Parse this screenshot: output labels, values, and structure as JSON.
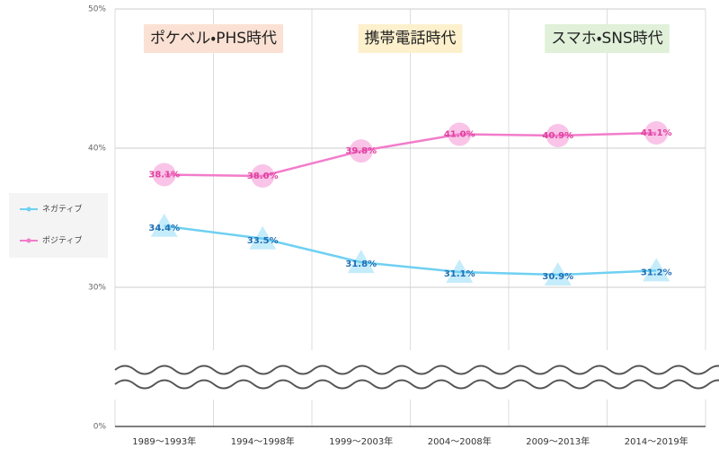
{
  "chart_data": {
    "type": "line",
    "categories": [
      "1989〜1993年",
      "1994〜1998年",
      "1999〜2003年",
      "2004〜2008年",
      "2009〜2013年",
      "2014〜2019年"
    ],
    "series": [
      {
        "name": "ネガティブ",
        "color": "#6fd0f2",
        "marker": "triangle",
        "label_color": "#1f6fb5",
        "values": [
          34.4,
          33.5,
          31.8,
          31.1,
          30.9,
          31.2
        ],
        "value_labels": [
          "34.4%",
          "33.5%",
          "31.8%",
          "31.1%",
          "30.9%",
          "31.2%"
        ]
      },
      {
        "name": "ポジティブ",
        "color": "#f27ccb",
        "marker": "circle",
        "label_color": "#e0409e",
        "values": [
          38.1,
          38.0,
          39.8,
          41.0,
          40.9,
          41.1
        ],
        "value_labels": [
          "38.1%",
          "38.0%",
          "39.8%",
          "41.0%",
          "40.9%",
          "41.1%"
        ]
      }
    ],
    "ylim": [
      0,
      50
    ],
    "yticks": [
      {
        "value": 0,
        "label": "0%"
      },
      {
        "value": 30,
        "label": "30%"
      },
      {
        "value": 40,
        "label": "40%"
      },
      {
        "value": 50,
        "label": "50%"
      }
    ],
    "y_axis_break": true,
    "grid": true,
    "legend": "left",
    "annotations": [
      {
        "text": "ポケベル・PHS時代",
        "color": "#fbe1d4"
      },
      {
        "text": "携帯電話時代",
        "color": "#fdf0cd"
      },
      {
        "text": "スマホ・SNS時代",
        "color": "#e1f0d9"
      }
    ]
  }
}
